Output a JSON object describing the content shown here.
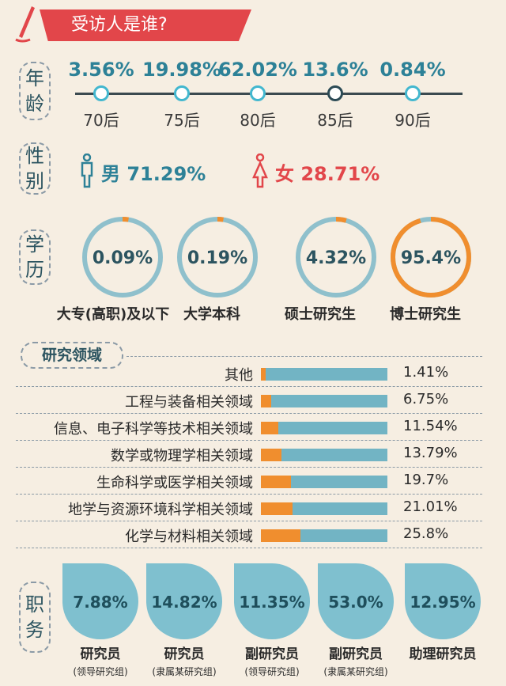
{
  "banner": {
    "title": "受访人是谁?"
  },
  "sections": {
    "age_label": [
      "年",
      "龄"
    ],
    "gender_label": [
      "性",
      "别"
    ],
    "edu_label": [
      "学",
      "历"
    ],
    "field_label": "研究领域",
    "position_label": [
      "职",
      "务"
    ]
  },
  "gender": {
    "male_label": "男",
    "male_pct": "71.29%",
    "female_label": "女",
    "female_pct": "28.71%"
  },
  "colors": {
    "teal": "#42b7cf",
    "orange": "#f08e2e",
    "red": "#e2464a",
    "bar_track": "#72b4c4"
  },
  "chart_data": [
    {
      "type": "line",
      "categories": [
        "70后",
        "75后",
        "80后",
        "85后",
        "90后"
      ],
      "value_labels": [
        "3.56%",
        "19.98%",
        "62.02%",
        "13.6%",
        "0.84%"
      ],
      "values": [
        3.56,
        19.98,
        62.02,
        13.6,
        0.84
      ]
    },
    {
      "type": "pie",
      "categories": [
        "大专(高职)及以下",
        "大学本科",
        "硕士研究生",
        "博士研究生"
      ],
      "value_labels": [
        "0.09%",
        "0.19%",
        "4.32%",
        "95.4%"
      ],
      "values": [
        0.09,
        0.19,
        4.32,
        95.4
      ]
    },
    {
      "type": "bar",
      "categories": [
        "其他",
        "工程与装备相关领域",
        "信息、电子科学等技术相关领域",
        "数学或物理学相关领域",
        "生命科学或医学相关领域",
        "地学与资源环境科学相关领域",
        "化学与材料相关领域"
      ],
      "value_labels": [
        "1.41%",
        "6.75%",
        "11.54%",
        "13.79%",
        "19.7%",
        "21.01%",
        "25.8%"
      ],
      "values": [
        1.41,
        6.75,
        11.54,
        13.79,
        19.7,
        21.01,
        25.8
      ]
    },
    {
      "type": "bar",
      "categories": [
        "研究员",
        "研究员",
        "副研究员",
        "副研究员",
        "助理研究员"
      ],
      "subcategories": [
        "(领导研究组)",
        "(隶属某研究组)",
        "(领导研究组)",
        "(隶属某研究组)",
        ""
      ],
      "value_labels": [
        "7.88%",
        "14.82%",
        "11.35%",
        "53.0%",
        "12.95%"
      ],
      "values": [
        7.88,
        14.82,
        11.35,
        53.0,
        12.95
      ]
    }
  ]
}
